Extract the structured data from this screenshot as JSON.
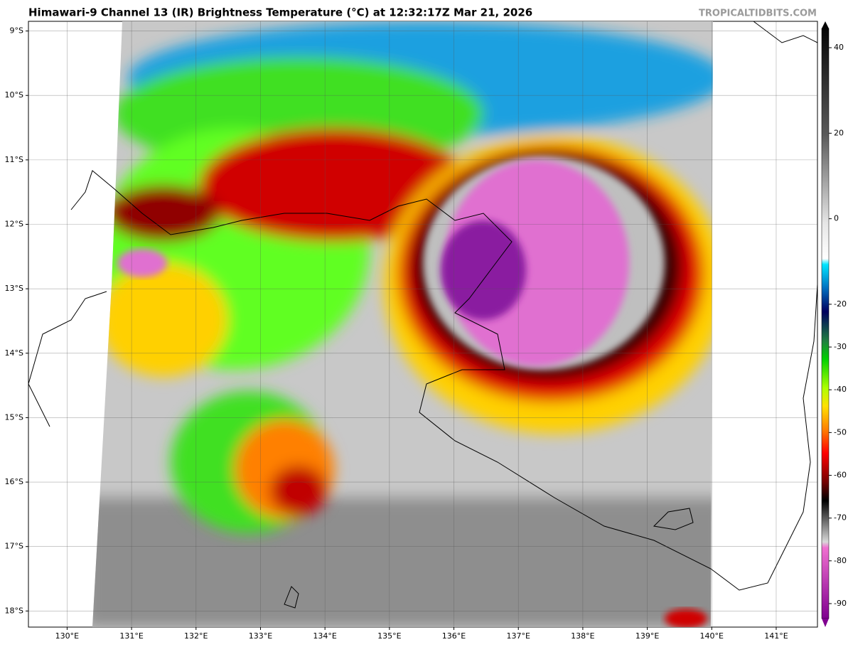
{
  "header": {
    "title": "Himawari-9 Channel 13 (IR) Brightness Temperature (°C) at 12:32:17Z Mar 21, 2026",
    "credit": "TROPICALTIDBITS.COM"
  },
  "map": {
    "xlim": [
      129.4,
      141.64
    ],
    "ylim": [
      -18.25,
      -8.85
    ],
    "xticks": [
      {
        "value": 130,
        "label": "130°E"
      },
      {
        "value": 131,
        "label": "131°E"
      },
      {
        "value": 132,
        "label": "132°E"
      },
      {
        "value": 133,
        "label": "133°E"
      },
      {
        "value": 134,
        "label": "134°E"
      },
      {
        "value": 135,
        "label": "135°E"
      },
      {
        "value": 136,
        "label": "136°E"
      },
      {
        "value": 137,
        "label": "137°E"
      },
      {
        "value": 138,
        "label": "138°E"
      },
      {
        "value": 139,
        "label": "139°E"
      },
      {
        "value": 140,
        "label": "140°E"
      },
      {
        "value": 141,
        "label": "141°E"
      }
    ],
    "yticks": [
      {
        "value": -9,
        "label": "9°S"
      },
      {
        "value": -10,
        "label": "10°S"
      },
      {
        "value": -11,
        "label": "11°S"
      },
      {
        "value": -12,
        "label": "12°S"
      },
      {
        "value": -13,
        "label": "13°S"
      },
      {
        "value": -14,
        "label": "14°S"
      },
      {
        "value": -15,
        "label": "15°S"
      },
      {
        "value": -16,
        "label": "16°S"
      },
      {
        "value": -17,
        "label": "17°S"
      },
      {
        "value": -18,
        "label": "18°S"
      }
    ],
    "grid": true
  },
  "colorbar": {
    "lim": [
      -93.5,
      44.5
    ],
    "ticks": [
      40,
      20,
      0,
      -20,
      -30,
      -40,
      -50,
      -60,
      -70,
      -80,
      -90
    ]
  }
}
